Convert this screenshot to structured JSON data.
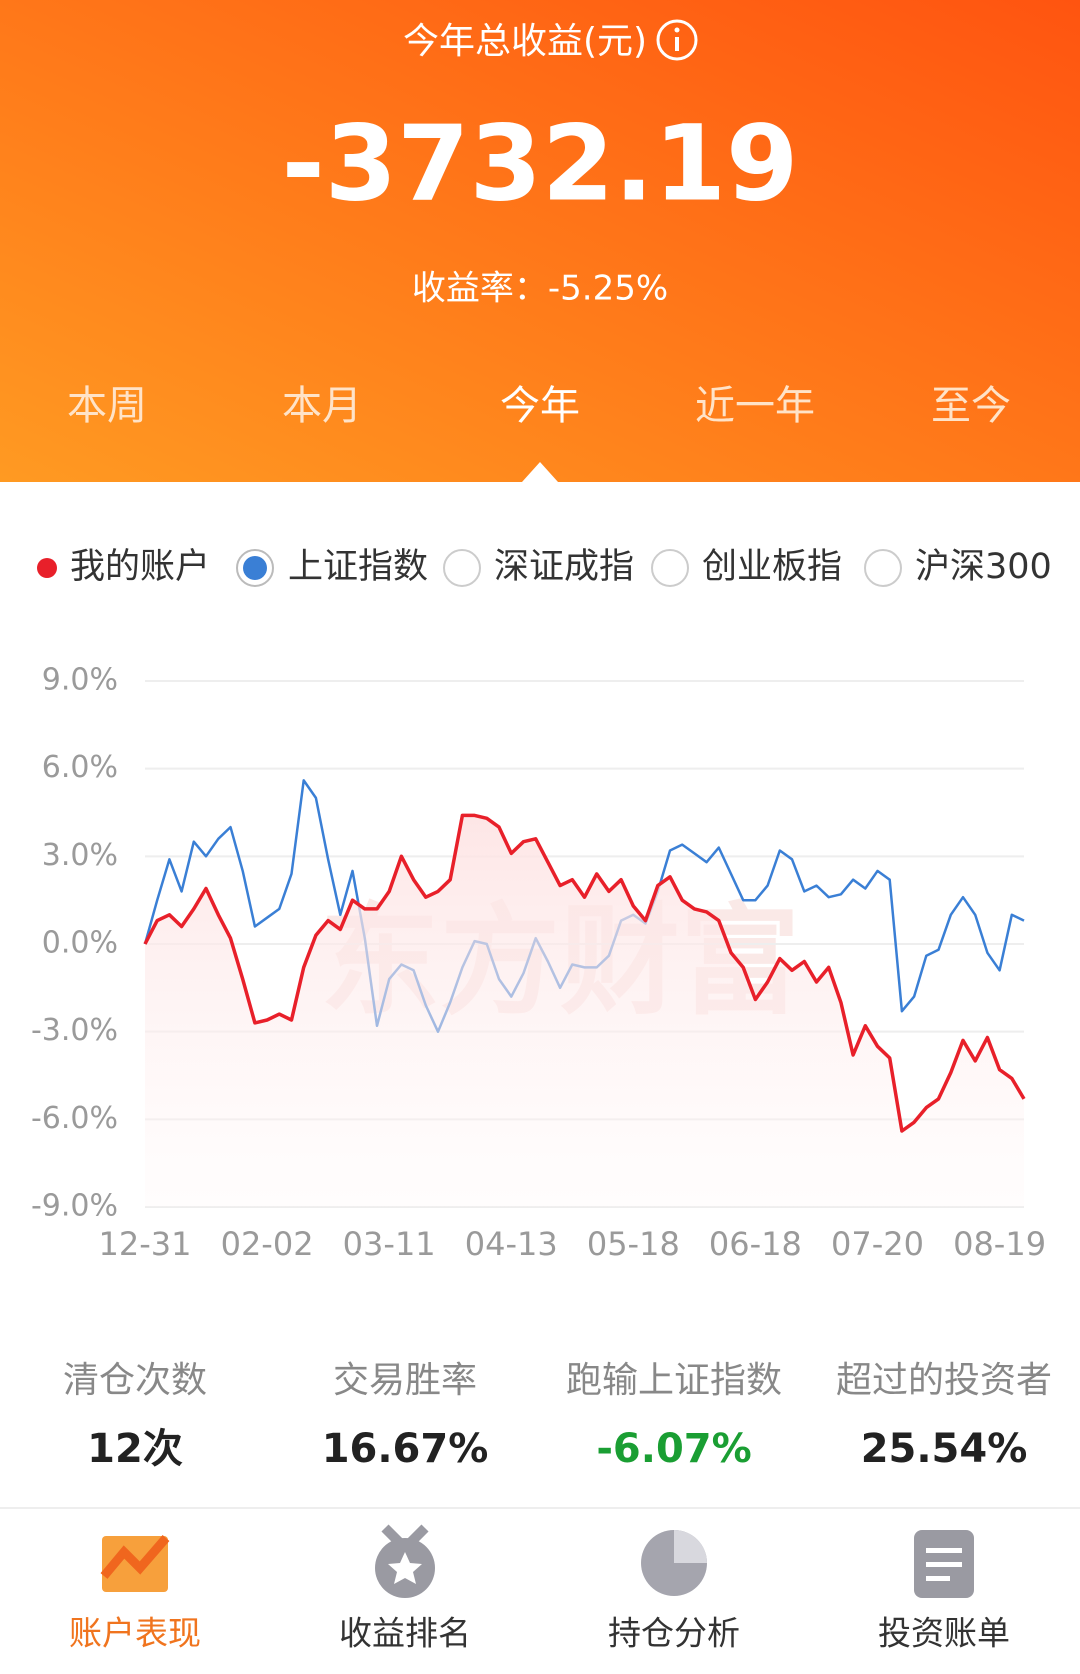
{
  "header": {
    "title": "今年总收益(元)",
    "total": "-3732.19",
    "rate": "收益率：-5.25%"
  },
  "tabs": [
    "本周",
    "本月",
    "今年",
    "近一年",
    "至今"
  ],
  "active_tab": 2,
  "chart_data": {
    "type": "line",
    "watermark": "东方财富",
    "series": [
      {
        "name": "我的账户",
        "color": "#e8202a",
        "values": [
          0,
          0.8,
          1.0,
          0.6,
          1.2,
          1.9,
          1.0,
          0.2,
          -1.2,
          -2.7,
          -2.6,
          -2.4,
          -2.6,
          -0.8,
          0.3,
          0.8,
          0.5,
          1.5,
          1.2,
          1.2,
          1.8,
          3.0,
          2.2,
          1.6,
          1.8,
          2.2,
          4.4,
          4.4,
          4.3,
          4.0,
          3.1,
          3.5,
          3.6,
          2.8,
          2.0,
          2.2,
          1.6,
          2.4,
          1.8,
          2.2,
          1.3,
          0.8,
          2.0,
          2.3,
          1.5,
          1.2,
          1.1,
          0.8,
          -0.3,
          -0.8,
          -1.9,
          -1.3,
          -0.5,
          -0.9,
          -0.6,
          -1.3,
          -0.8,
          -2.0,
          -3.8,
          -2.8,
          -3.5,
          -3.9,
          -6.4,
          -6.1,
          -5.6,
          -5.3,
          -4.4,
          -3.3,
          -4.0,
          -3.2,
          -4.3,
          -4.6,
          -5.3
        ]
      },
      {
        "name": "上证指数",
        "color": "#3a7fd5",
        "values": [
          0,
          1.5,
          2.9,
          1.8,
          3.5,
          3.0,
          3.6,
          4.0,
          2.5,
          0.6,
          0.9,
          1.2,
          2.4,
          5.6,
          5.0,
          2.9,
          1.0,
          2.5,
          0.2,
          -2.8,
          -1.2,
          -0.7,
          -0.9,
          -2.1,
          -3.0,
          -2.0,
          -0.8,
          0.1,
          0,
          -1.2,
          -1.8,
          -1.0,
          0.2,
          -0.6,
          -1.5,
          -0.7,
          -0.8,
          -0.8,
          -0.4,
          0.8,
          1.0,
          0.7,
          1.8,
          3.2,
          3.4,
          3.1,
          2.8,
          3.3,
          2.4,
          1.5,
          1.5,
          2.0,
          3.2,
          2.9,
          1.8,
          2.0,
          1.6,
          1.7,
          2.2,
          1.9,
          2.5,
          2.2,
          -2.3,
          -1.8,
          -0.4,
          -0.2,
          1.0,
          1.6,
          1.0,
          -0.3,
          -0.9,
          1.0,
          0.8
        ]
      }
    ],
    "other_indices": [
      "深证成指",
      "创业板指",
      "沪深300"
    ],
    "xlim": [
      0,
      72
    ],
    "xticks": [
      {
        "value": 0,
        "label": "12-31"
      },
      {
        "value": 10,
        "label": "02-02"
      },
      {
        "value": 20,
        "label": "03-11"
      },
      {
        "value": 30,
        "label": "04-13"
      },
      {
        "value": 40,
        "label": "05-18"
      },
      {
        "value": 50,
        "label": "06-18"
      },
      {
        "value": 60,
        "label": "07-20"
      },
      {
        "value": 70,
        "label": "08-19"
      }
    ],
    "ylim": [
      -9,
      9
    ],
    "yticks": [
      {
        "value": 9,
        "label": "9.0%"
      },
      {
        "value": 6,
        "label": "6.0%"
      },
      {
        "value": 3,
        "label": "3.0%"
      },
      {
        "value": 0,
        "label": "0.0%"
      },
      {
        "value": -3,
        "label": "-3.0%"
      },
      {
        "value": -6,
        "label": "-6.0%"
      },
      {
        "value": -9,
        "label": "-9.0%"
      }
    ],
    "grid": true
  },
  "stats": [
    {
      "label": "清仓次数",
      "value": "12次"
    },
    {
      "label": "交易胜率",
      "value": "16.67%"
    },
    {
      "label": "跑输上证指数",
      "value": "-6.07%"
    },
    {
      "label": "超过的投资者",
      "value": "25.54%"
    }
  ],
  "nav": [
    "账户表现",
    "收益排名",
    "持仓分析",
    "投资账单"
  ],
  "active_nav": 0
}
